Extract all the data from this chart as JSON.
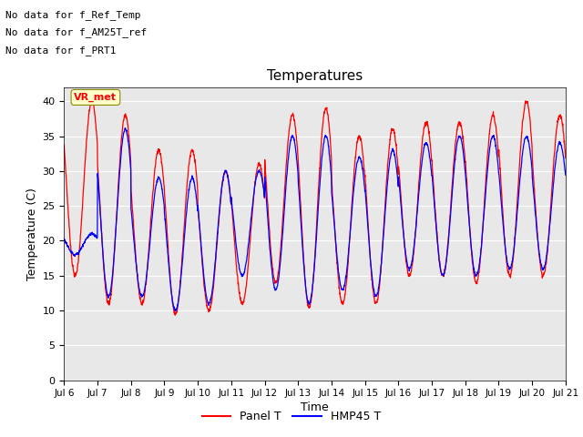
{
  "title": "Temperatures",
  "xlabel": "Time",
  "ylabel": "Temperature (C)",
  "ylim": [
    0,
    42
  ],
  "yticks": [
    0,
    5,
    10,
    15,
    20,
    25,
    30,
    35,
    40
  ],
  "x_labels": [
    "Jul 6",
    "Jul 7",
    "Jul 8",
    "Jul 9",
    "Jul 10",
    "Jul 11",
    "Jul 12",
    "Jul 13",
    "Jul 14",
    "Jul 15",
    "Jul 16",
    "Jul 17",
    "Jul 18",
    "Jul 19",
    "Jul 20",
    "Jul 21"
  ],
  "annotations": [
    "No data for f_Ref_Temp",
    "No data for f_AM25T_ref",
    "No data for f_PRT1"
  ],
  "vr_met_label": "VR_met",
  "legend_entries": [
    "Panel T",
    "HMP45 T"
  ],
  "panel_color": "red",
  "hmp45_color": "blue",
  "bg_color": "#e8e8e8",
  "fig_bg_color": "#c8c8c8",
  "n_days": 15,
  "n_points_per_day": 144
}
